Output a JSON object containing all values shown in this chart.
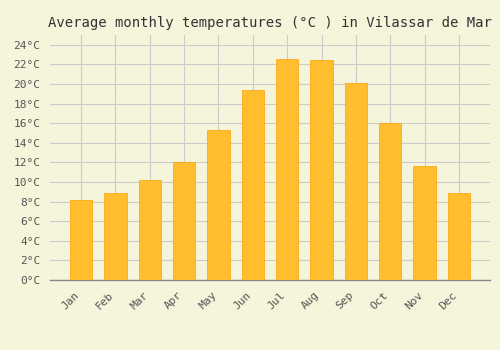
{
  "title": "Average monthly temperatures (°C ) in Vilassar de Mar",
  "months": [
    "Jan",
    "Feb",
    "Mar",
    "Apr",
    "May",
    "Jun",
    "Jul",
    "Aug",
    "Sep",
    "Oct",
    "Nov",
    "Dec"
  ],
  "temperatures": [
    8.2,
    8.9,
    10.2,
    12.0,
    15.3,
    19.4,
    22.6,
    22.5,
    20.1,
    16.0,
    11.6,
    8.9
  ],
  "bar_color_main": "#FFBE2D",
  "bar_color_edge": "#FFA000",
  "ylim": [
    0,
    25
  ],
  "yticks": [
    0,
    2,
    4,
    6,
    8,
    10,
    12,
    14,
    16,
    18,
    20,
    22,
    24
  ],
  "background_color": "#F5F5DC",
  "grid_color": "#CCCCCC",
  "title_fontsize": 10,
  "tick_fontsize": 8,
  "font_family": "monospace"
}
